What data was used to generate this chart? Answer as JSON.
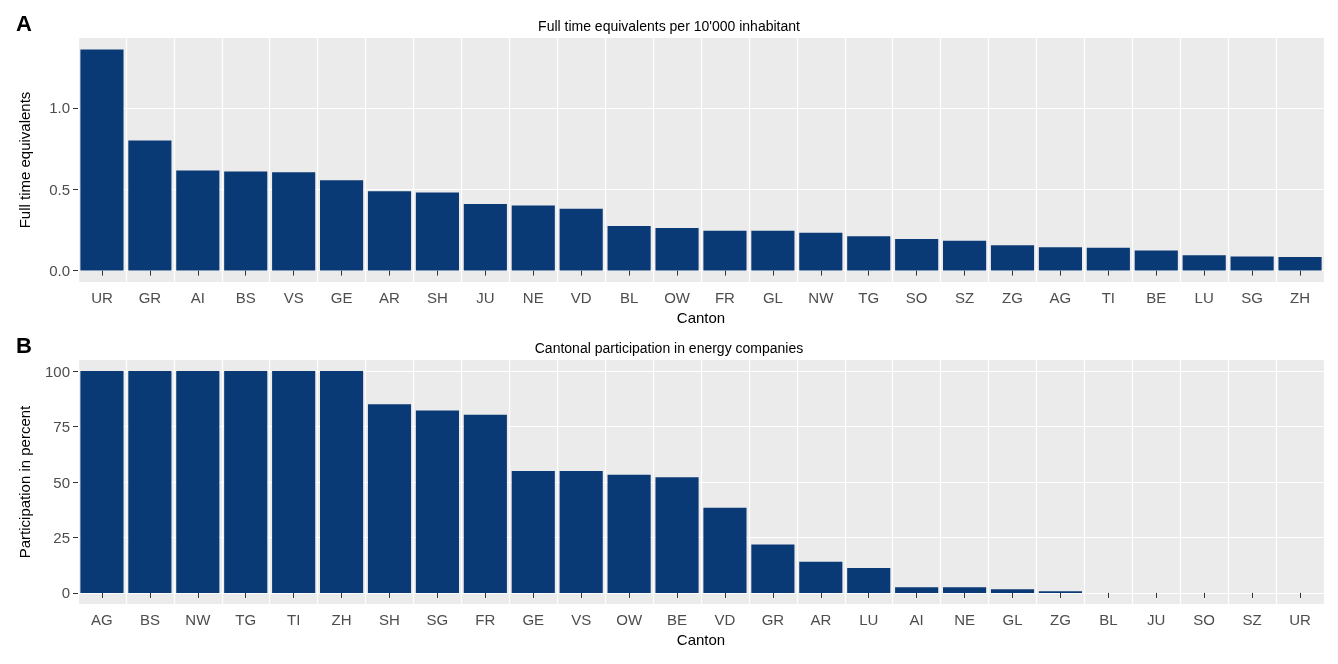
{
  "chart_data": [
    {
      "type": "bar",
      "title": "Full time equivalents per 10'000 inhabitant",
      "xlabel": "Canton",
      "ylabel": "Full time equivalents",
      "annotations": [
        "A"
      ],
      "categories": [
        "UR",
        "GR",
        "AI",
        "BS",
        "VS",
        "GE",
        "AR",
        "SH",
        "JU",
        "NE",
        "VD",
        "BL",
        "OW",
        "FR",
        "GL",
        "NW",
        "TG",
        "SO",
        "SZ",
        "ZG",
        "AG",
        "TI",
        "BE",
        "LU",
        "SG",
        "ZH"
      ],
      "values": [
        1.36,
        0.8,
        0.615,
        0.61,
        0.605,
        0.556,
        0.488,
        0.48,
        0.41,
        0.4,
        0.38,
        0.275,
        0.262,
        0.245,
        0.245,
        0.232,
        0.211,
        0.195,
        0.184,
        0.156,
        0.143,
        0.141,
        0.124,
        0.095,
        0.087,
        0.084
      ],
      "color": "#0a3a75",
      "ylim": [
        -0.07,
        1.43
      ],
      "yticks": [
        {
          "value": 0,
          "label": "0.0"
        },
        {
          "value": 0.5,
          "label": "0.5"
        },
        {
          "value": 1,
          "label": "1.0"
        }
      ],
      "grid": true
    },
    {
      "type": "bar",
      "title": "Cantonal participation in energy companies",
      "xlabel": "Canton",
      "ylabel": "Participation in percent",
      "annotations": [
        "B"
      ],
      "categories": [
        "AG",
        "BS",
        "NW",
        "TG",
        "TI",
        "ZH",
        "SH",
        "SG",
        "FR",
        "GE",
        "VS",
        "OW",
        "BE",
        "VD",
        "GR",
        "AR",
        "LU",
        "AI",
        "NE",
        "GL",
        "ZG",
        "BL",
        "JU",
        "SO",
        "SZ",
        "UR"
      ],
      "values": [
        100,
        100,
        100,
        100,
        100,
        100,
        85,
        82.2,
        80.3,
        55,
        55,
        53.3,
        52.1,
        38.4,
        21.8,
        14.1,
        11.2,
        2.5,
        2.5,
        1.7,
        0.8,
        0,
        0,
        0,
        0,
        0
      ],
      "color": "#0a3a75",
      "ylim": [
        -5,
        105
      ],
      "yticks": [
        0,
        25,
        50,
        75,
        100
      ],
      "grid": true
    }
  ]
}
